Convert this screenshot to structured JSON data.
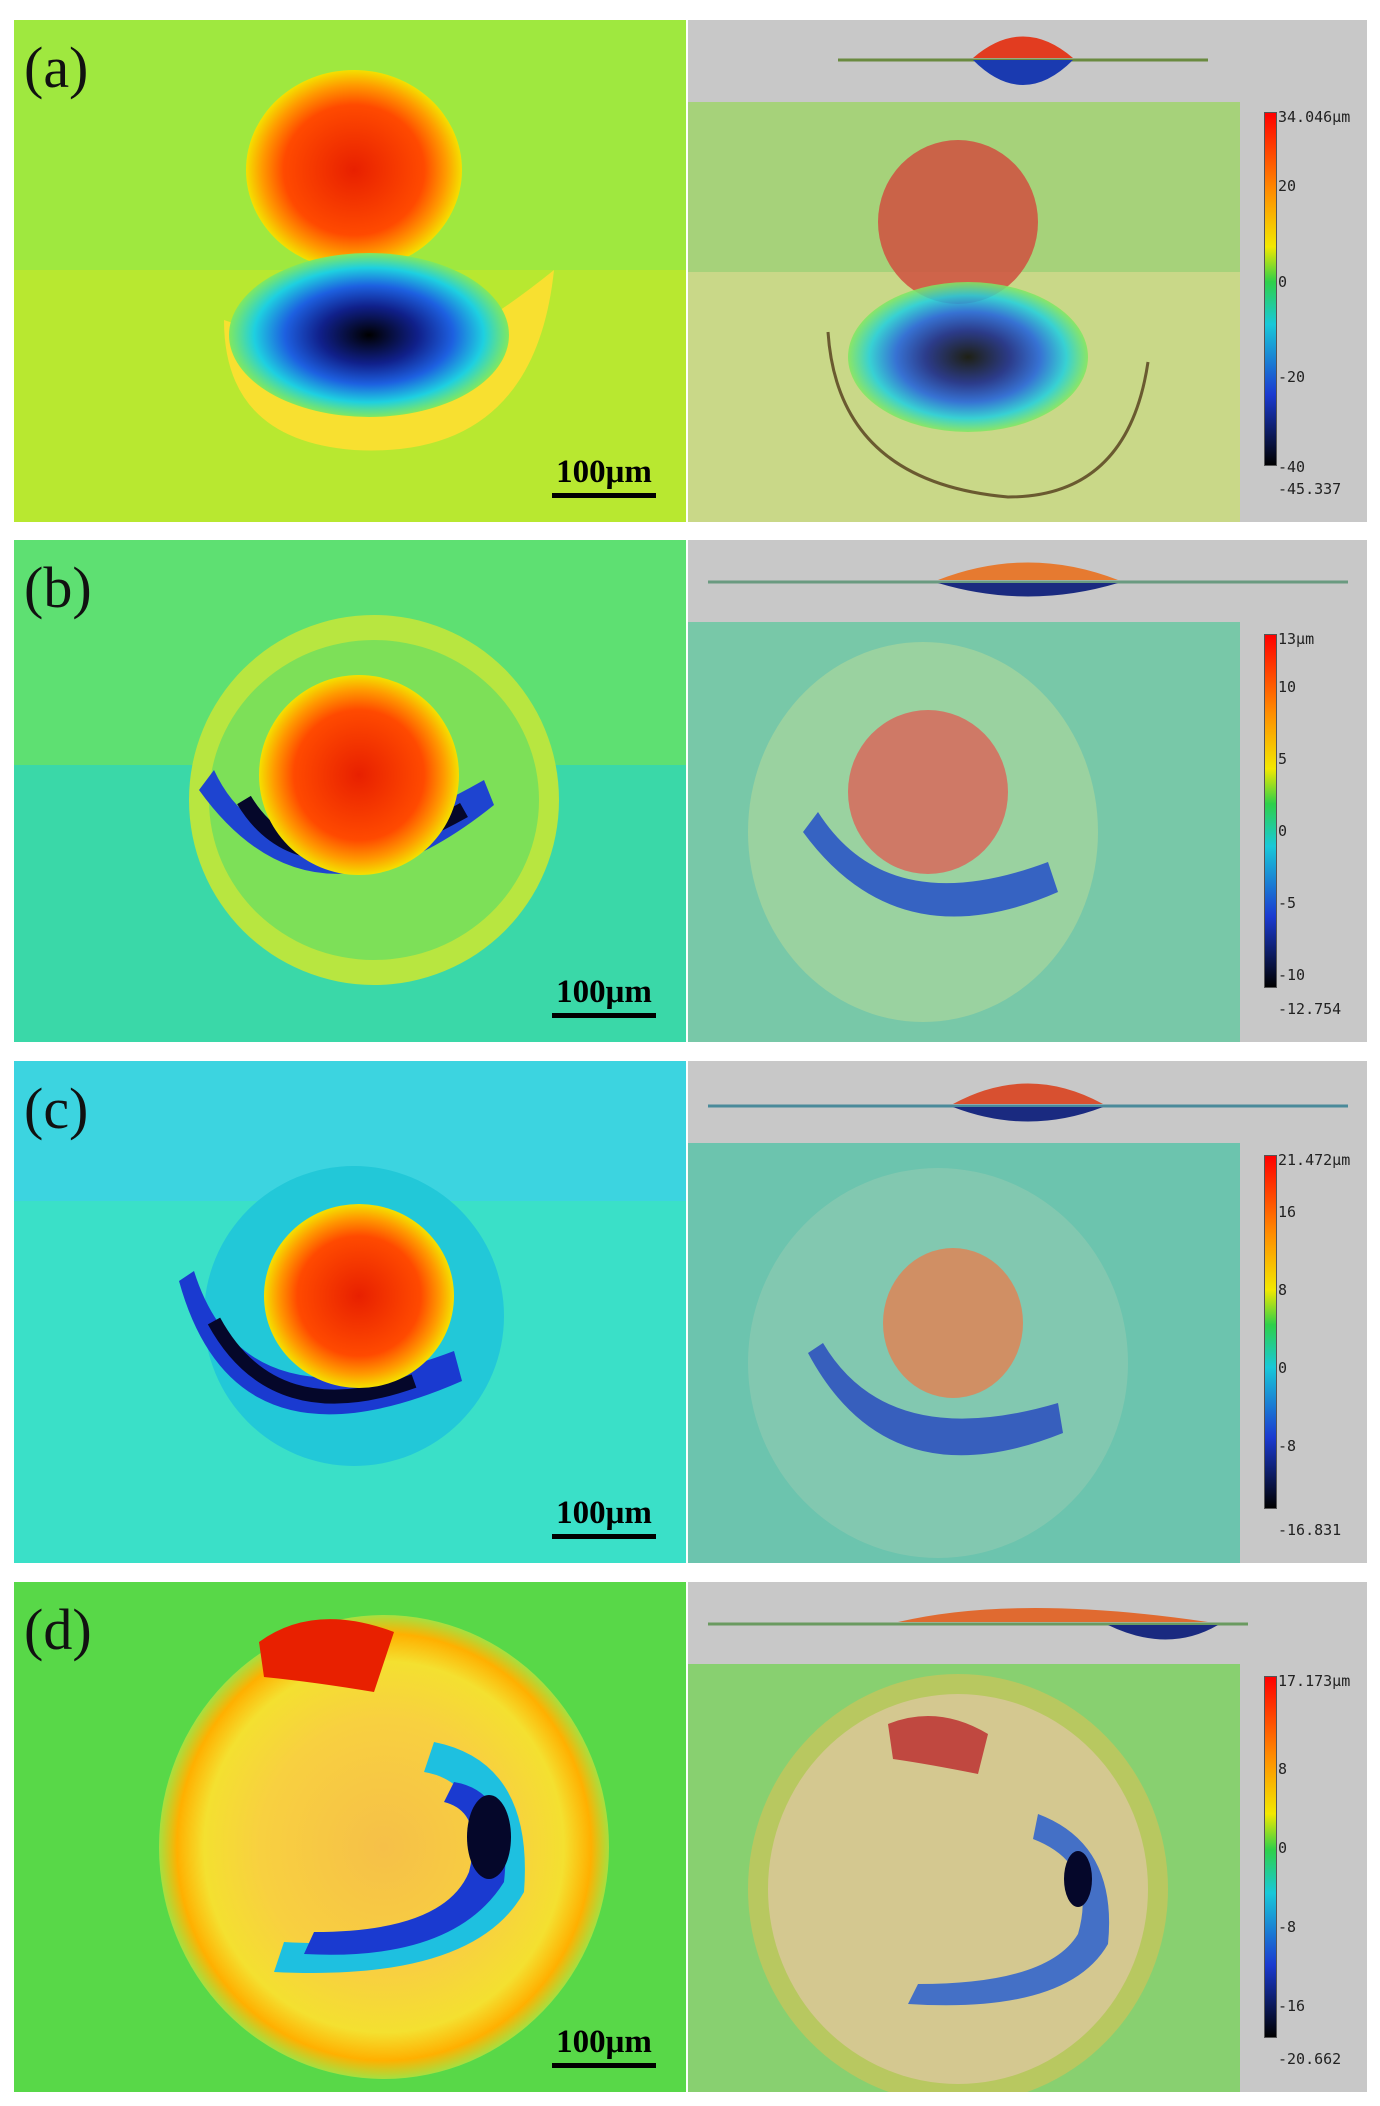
{
  "panels": [
    {
      "label": "(a)",
      "scale_label": "100μm",
      "colorbar": {
        "max": "34.046μm",
        "ticks": [
          "20",
          "0",
          "-20",
          "-40"
        ],
        "min": "-45.337"
      }
    },
    {
      "label": "(b)",
      "scale_label": "100μm",
      "colorbar": {
        "max": "13μm",
        "ticks": [
          "10",
          "5",
          "0",
          "-5",
          "-10"
        ],
        "min": "-12.754"
      }
    },
    {
      "label": "(c)",
      "scale_label": "100μm",
      "colorbar": {
        "max": "21.472μm",
        "ticks": [
          "16",
          "8",
          "0",
          "-8"
        ],
        "min": "-16.831"
      }
    },
    {
      "label": "(d)",
      "scale_label": "100μm",
      "colorbar": {
        "max": "17.173μm",
        "ticks": [
          "8",
          "0",
          "-8",
          "-16"
        ],
        "min": "-20.662"
      }
    }
  ]
}
